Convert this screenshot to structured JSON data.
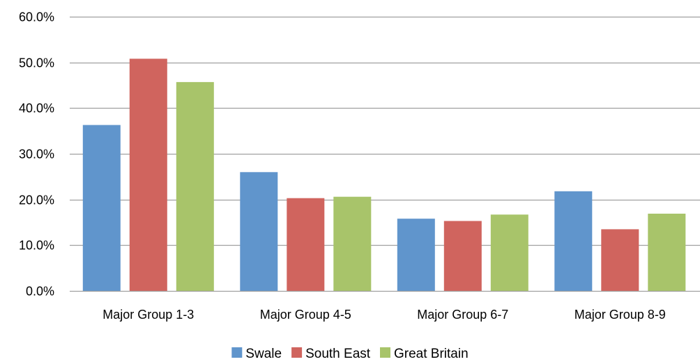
{
  "chart_data": {
    "type": "bar",
    "title": "",
    "xlabel": "",
    "ylabel": "",
    "categories": [
      "Major Group 1-3",
      "Major Group 4-5",
      "Major Group 6-7",
      "Major Group 8-9"
    ],
    "series": [
      {
        "name": "Swale",
        "color": "#6095CC",
        "values": [
          36.3,
          26.0,
          15.8,
          21.8
        ]
      },
      {
        "name": "South East",
        "color": "#D0645E",
        "values": [
          50.8,
          20.3,
          15.3,
          13.5
        ]
      },
      {
        "name": "Great Britain",
        "color": "#A8C46A",
        "values": [
          45.7,
          20.6,
          16.7,
          16.9
        ]
      }
    ],
    "ylim": [
      0,
      60
    ],
    "yticks": [
      0,
      10,
      20,
      30,
      40,
      50,
      60
    ],
    "ytick_labels": [
      "0.0%",
      "10.0%",
      "20.0%",
      "30.0%",
      "40.0%",
      "50.0%",
      "60.0%"
    ],
    "grid": true,
    "gridline_color": "#A0A0A0",
    "legend_position": "bottom"
  }
}
